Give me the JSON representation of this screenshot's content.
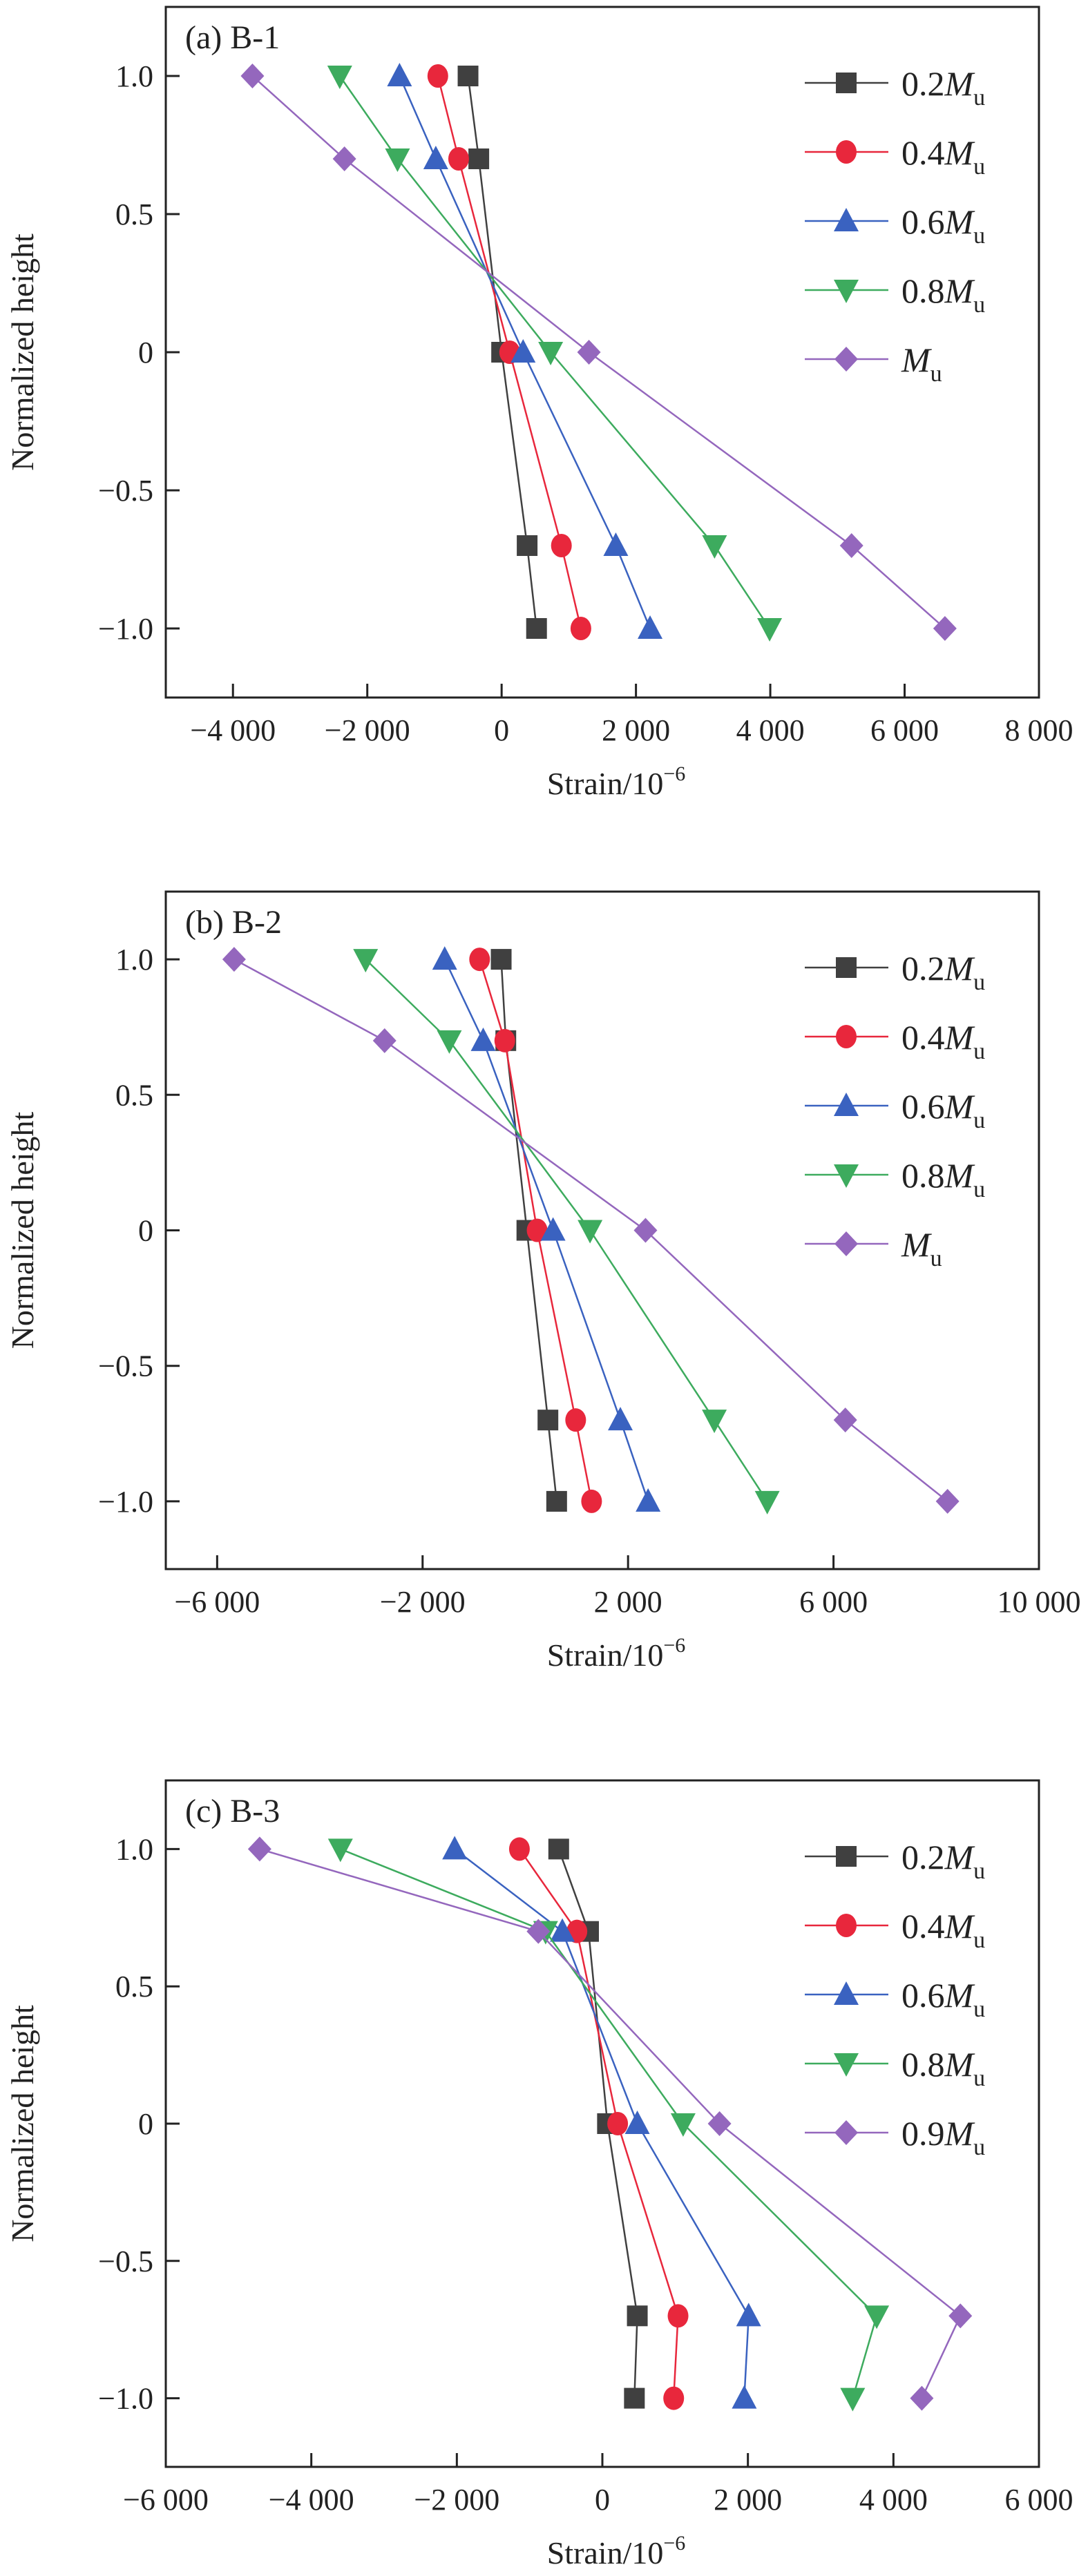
{
  "chart_data": [
    {
      "type": "line",
      "title": "(a) B-1",
      "xlabel": "Strain/10",
      "xlabel_exp": "−6",
      "ylabel": "Normalized height",
      "xlim": [
        -5000,
        8000
      ],
      "ylim": [
        -1.25,
        1.25
      ],
      "xticks": [
        -4000,
        -2000,
        0,
        2000,
        4000,
        6000,
        8000
      ],
      "xtick_labels": [
        "−4 000",
        "−2 000",
        "0",
        "2 000",
        "4 000",
        "6 000",
        "8 000"
      ],
      "yticks": [
        1.0,
        0.5,
        0,
        -0.5,
        -1.0
      ],
      "ytick_labels": [
        "1.0",
        "0.5",
        "0",
        "−0.5",
        "−1.0"
      ],
      "grid": false,
      "legend_position": "top-right",
      "y": [
        1.0,
        0.7,
        0,
        -0.7,
        -1.0
      ],
      "series": [
        {
          "coef": "0.2",
          "sym": "M",
          "sub": "u",
          "marker": "square",
          "color": "#404040",
          "x": [
            -500,
            -340,
            0,
            380,
            520
          ]
        },
        {
          "coef": "0.4",
          "sym": "M",
          "sub": "u",
          "marker": "circle",
          "color": "#e8273c",
          "x": [
            -950,
            -640,
            120,
            890,
            1180
          ]
        },
        {
          "coef": "0.6",
          "sym": "M",
          "sub": "u",
          "marker": "triangle-up",
          "color": "#3a62c0",
          "x": [
            -1520,
            -980,
            320,
            1700,
            2210
          ]
        },
        {
          "coef": "0.8",
          "sym": "M",
          "sub": "u",
          "marker": "triangle-down",
          "color": "#3dab5e",
          "x": [
            -2410,
            -1550,
            730,
            3170,
            3990
          ]
        },
        {
          "coef": "",
          "sym": "M",
          "sub": "u",
          "marker": "diamond",
          "color": "#9467bd",
          "x": [
            -3710,
            -2340,
            1300,
            5210,
            6600
          ]
        }
      ]
    },
    {
      "type": "line",
      "title": "(b) B-2",
      "xlabel": "Strain/10",
      "xlabel_exp": "−6",
      "ylabel": "Normalized height",
      "xlim": [
        -7000,
        10000
      ],
      "ylim": [
        -1.25,
        1.25
      ],
      "xticks": [
        -6000,
        -2000,
        2000,
        6000,
        10000
      ],
      "xtick_labels": [
        "−6 000",
        "−2 000",
        "2 000",
        "6 000",
        "10 000"
      ],
      "yticks": [
        1.0,
        0.5,
        0,
        -0.5,
        -1.0
      ],
      "ytick_labels": [
        "1.0",
        "0.5",
        "0",
        "−0.5",
        "−1.0"
      ],
      "grid": false,
      "legend_position": "top-right",
      "y": [
        1.0,
        0.7,
        0,
        -0.7,
        -1.0
      ],
      "series": [
        {
          "coef": "0.2",
          "sym": "M",
          "sub": "u",
          "marker": "square",
          "color": "#404040",
          "x": [
            -470,
            -380,
            30,
            440,
            610
          ]
        },
        {
          "coef": "0.4",
          "sym": "M",
          "sub": "u",
          "marker": "circle",
          "color": "#e8273c",
          "x": [
            -890,
            -400,
            230,
            980,
            1290
          ]
        },
        {
          "coef": "0.6",
          "sym": "M",
          "sub": "u",
          "marker": "triangle-up",
          "color": "#3a62c0",
          "x": [
            -1570,
            -820,
            540,
            1850,
            2390
          ]
        },
        {
          "coef": "0.8",
          "sym": "M",
          "sub": "u",
          "marker": "triangle-down",
          "color": "#3dab5e",
          "x": [
            -3110,
            -1480,
            1260,
            3680,
            4710
          ]
        },
        {
          "coef": "",
          "sym": "M",
          "sub": "u",
          "marker": "diamond",
          "color": "#9467bd",
          "x": [
            -5670,
            -2740,
            2340,
            6230,
            8220
          ]
        }
      ]
    },
    {
      "type": "line",
      "title": "(c) B-3",
      "xlabel": "Strain/10",
      "xlabel_exp": "−6",
      "ylabel": "Normalized height",
      "xlim": [
        -6000,
        6000
      ],
      "ylim": [
        -1.25,
        1.25
      ],
      "xticks": [
        -6000,
        -4000,
        -2000,
        0,
        2000,
        4000,
        6000
      ],
      "xtick_labels": [
        "−6 000",
        "−4 000",
        "−2 000",
        "0",
        "2 000",
        "4 000",
        "6 000"
      ],
      "yticks": [
        1.0,
        0.5,
        0,
        -0.5,
        -1.0
      ],
      "ytick_labels": [
        "1.0",
        "0.5",
        "0",
        "−0.5",
        "−1.0"
      ],
      "grid": false,
      "legend_position": "top-right",
      "y": [
        1.0,
        0.7,
        0,
        -0.7,
        -1.0
      ],
      "series": [
        {
          "coef": "0.2",
          "sym": "M",
          "sub": "u",
          "marker": "square",
          "color": "#404040",
          "x": [
            -600,
            -190,
            70,
            480,
            440
          ]
        },
        {
          "coef": "0.4",
          "sym": "M",
          "sub": "u",
          "marker": "circle",
          "color": "#e8273c",
          "x": [
            -1140,
            -350,
            210,
            1040,
            980
          ]
        },
        {
          "coef": "0.6",
          "sym": "M",
          "sub": "u",
          "marker": "triangle-up",
          "color": "#3a62c0",
          "x": [
            -2030,
            -550,
            480,
            2010,
            1950
          ]
        },
        {
          "coef": "0.8",
          "sym": "M",
          "sub": "u",
          "marker": "triangle-down",
          "color": "#3dab5e",
          "x": [
            -3600,
            -780,
            1110,
            3770,
            3440
          ]
        },
        {
          "coef": "0.9",
          "sym": "M",
          "sub": "u",
          "marker": "diamond",
          "color": "#9467bd",
          "x": [
            -4710,
            -880,
            1610,
            4920,
            4390
          ]
        }
      ]
    }
  ]
}
